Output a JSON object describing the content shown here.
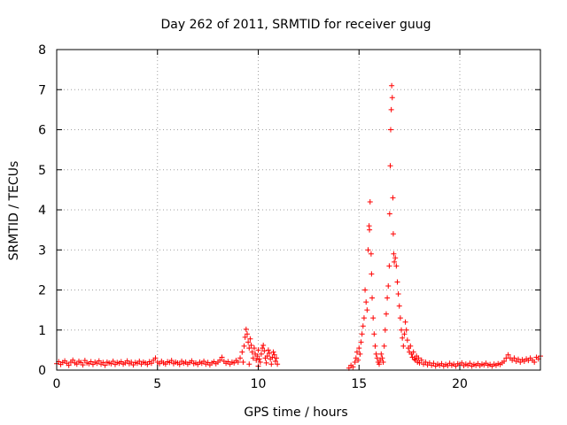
{
  "chart_data": {
    "type": "scatter",
    "title": "Day 262 of 2011, SRMTID for receiver guug",
    "xlabel": "GPS time / hours",
    "ylabel": "SRMTID / TECUs",
    "xlim": [
      0,
      24
    ],
    "ylim": [
      0,
      8
    ],
    "xticks": [
      0,
      5,
      10,
      15,
      20
    ],
    "yticks": [
      0,
      1,
      2,
      3,
      4,
      5,
      6,
      7,
      8
    ],
    "grid": true,
    "legend": "none",
    "marker": "+",
    "color": "#ff0000",
    "series": [
      {
        "points": [
          [
            0.0,
            0.16
          ],
          [
            0.1,
            0.21
          ],
          [
            0.2,
            0.14
          ],
          [
            0.3,
            0.19
          ],
          [
            0.4,
            0.23
          ],
          [
            0.5,
            0.17
          ],
          [
            0.6,
            0.12
          ],
          [
            0.7,
            0.2
          ],
          [
            0.8,
            0.25
          ],
          [
            0.9,
            0.18
          ],
          [
            1.0,
            0.15
          ],
          [
            1.1,
            0.22
          ],
          [
            1.2,
            0.19
          ],
          [
            1.3,
            0.13
          ],
          [
            1.4,
            0.24
          ],
          [
            1.5,
            0.18
          ],
          [
            1.6,
            0.16
          ],
          [
            1.7,
            0.21
          ],
          [
            1.8,
            0.14
          ],
          [
            1.9,
            0.2
          ],
          [
            2.0,
            0.17
          ],
          [
            2.1,
            0.23
          ],
          [
            2.2,
            0.15
          ],
          [
            2.3,
            0.19
          ],
          [
            2.4,
            0.12
          ],
          [
            2.5,
            0.2
          ],
          [
            2.6,
            0.18
          ],
          [
            2.7,
            0.16
          ],
          [
            2.8,
            0.22
          ],
          [
            2.9,
            0.14
          ],
          [
            3.0,
            0.19
          ],
          [
            3.1,
            0.17
          ],
          [
            3.2,
            0.21
          ],
          [
            3.3,
            0.15
          ],
          [
            3.4,
            0.18
          ],
          [
            3.5,
            0.23
          ],
          [
            3.6,
            0.16
          ],
          [
            3.7,
            0.2
          ],
          [
            3.8,
            0.13
          ],
          [
            3.9,
            0.19
          ],
          [
            4.0,
            0.17
          ],
          [
            4.1,
            0.22
          ],
          [
            4.2,
            0.15
          ],
          [
            4.3,
            0.2
          ],
          [
            4.4,
            0.18
          ],
          [
            4.5,
            0.14
          ],
          [
            4.6,
            0.21
          ],
          [
            4.7,
            0.17
          ],
          [
            4.8,
            0.25
          ],
          [
            4.9,
            0.3
          ],
          [
            5.0,
            0.2
          ],
          [
            5.1,
            0.16
          ],
          [
            5.2,
            0.22
          ],
          [
            5.3,
            0.18
          ],
          [
            5.4,
            0.15
          ],
          [
            5.5,
            0.21
          ],
          [
            5.6,
            0.19
          ],
          [
            5.7,
            0.24
          ],
          [
            5.8,
            0.16
          ],
          [
            5.9,
            0.2
          ],
          [
            6.0,
            0.18
          ],
          [
            6.1,
            0.14
          ],
          [
            6.2,
            0.22
          ],
          [
            6.3,
            0.17
          ],
          [
            6.4,
            0.2
          ],
          [
            6.5,
            0.15
          ],
          [
            6.6,
            0.19
          ],
          [
            6.7,
            0.23
          ],
          [
            6.8,
            0.16
          ],
          [
            6.9,
            0.18
          ],
          [
            7.0,
            0.14
          ],
          [
            7.1,
            0.2
          ],
          [
            7.2,
            0.17
          ],
          [
            7.3,
            0.22
          ],
          [
            7.4,
            0.15
          ],
          [
            7.5,
            0.19
          ],
          [
            7.6,
            0.13
          ],
          [
            7.7,
            0.18
          ],
          [
            7.8,
            0.21
          ],
          [
            7.9,
            0.16
          ],
          [
            8.0,
            0.2
          ],
          [
            8.1,
            0.25
          ],
          [
            8.2,
            0.32
          ],
          [
            8.3,
            0.22
          ],
          [
            8.4,
            0.17
          ],
          [
            8.5,
            0.21
          ],
          [
            8.6,
            0.15
          ],
          [
            8.7,
            0.2
          ],
          [
            8.8,
            0.18
          ],
          [
            8.9,
            0.24
          ],
          [
            9.0,
            0.2
          ],
          [
            9.1,
            0.3
          ],
          [
            9.2,
            0.45
          ],
          [
            9.3,
            0.6
          ],
          [
            9.35,
            0.82
          ],
          [
            9.4,
            1.02
          ],
          [
            9.45,
            0.9
          ],
          [
            9.5,
            0.7
          ],
          [
            9.55,
            0.55
          ],
          [
            9.6,
            0.78
          ],
          [
            9.65,
            0.62
          ],
          [
            9.7,
            0.45
          ],
          [
            9.75,
            0.3
          ],
          [
            9.8,
            0.55
          ],
          [
            9.85,
            0.4
          ],
          [
            9.9,
            0.25
          ],
          [
            9.95,
            0.35
          ],
          [
            10.0,
            0.5
          ],
          [
            10.05,
            0.28
          ],
          [
            10.1,
            0.2
          ],
          [
            10.15,
            0.4
          ],
          [
            10.2,
            0.55
          ],
          [
            10.25,
            0.62
          ],
          [
            10.3,
            0.48
          ],
          [
            10.35,
            0.3
          ],
          [
            10.4,
            0.18
          ],
          [
            10.45,
            0.35
          ],
          [
            10.5,
            0.5
          ],
          [
            10.55,
            0.42
          ],
          [
            10.6,
            0.28
          ],
          [
            10.65,
            0.15
          ],
          [
            10.7,
            0.32
          ],
          [
            10.75,
            0.45
          ],
          [
            10.8,
            0.38
          ],
          [
            10.85,
            0.22
          ],
          [
            10.9,
            0.3
          ],
          [
            10.95,
            0.15
          ],
          [
            9.25,
            0.2
          ],
          [
            9.55,
            0.15
          ],
          [
            10.0,
            0.1
          ],
          [
            14.5,
            0.05
          ],
          [
            14.6,
            0.12
          ],
          [
            14.7,
            0.08
          ],
          [
            14.8,
            0.2
          ],
          [
            14.85,
            0.3
          ],
          [
            14.9,
            0.45
          ],
          [
            14.95,
            0.25
          ],
          [
            15.0,
            0.55
          ],
          [
            15.05,
            0.4
          ],
          [
            15.1,
            0.7
          ],
          [
            15.15,
            0.9
          ],
          [
            15.2,
            1.1
          ],
          [
            15.25,
            1.3
          ],
          [
            15.3,
            2.0
          ],
          [
            15.35,
            1.7
          ],
          [
            15.4,
            1.5
          ],
          [
            15.45,
            3.0
          ],
          [
            15.5,
            3.6
          ],
          [
            15.52,
            3.5
          ],
          [
            15.55,
            4.2
          ],
          [
            15.6,
            2.9
          ],
          [
            15.62,
            2.4
          ],
          [
            15.65,
            1.8
          ],
          [
            15.7,
            1.3
          ],
          [
            15.75,
            0.9
          ],
          [
            15.8,
            0.6
          ],
          [
            15.85,
            0.4
          ],
          [
            15.9,
            0.3
          ],
          [
            15.95,
            0.2
          ],
          [
            16.0,
            0.15
          ],
          [
            16.05,
            0.25
          ],
          [
            16.1,
            0.4
          ],
          [
            16.15,
            0.3
          ],
          [
            16.2,
            0.2
          ],
          [
            16.25,
            0.6
          ],
          [
            16.3,
            1.0
          ],
          [
            16.35,
            1.4
          ],
          [
            16.4,
            1.8
          ],
          [
            16.45,
            2.1
          ],
          [
            16.5,
            2.6
          ],
          [
            16.52,
            3.9
          ],
          [
            16.55,
            5.1
          ],
          [
            16.57,
            6.0
          ],
          [
            16.6,
            6.5
          ],
          [
            16.62,
            7.1
          ],
          [
            16.65,
            6.8
          ],
          [
            16.68,
            4.3
          ],
          [
            16.7,
            3.4
          ],
          [
            16.72,
            2.9
          ],
          [
            16.75,
            2.7
          ],
          [
            16.8,
            2.8
          ],
          [
            16.85,
            2.6
          ],
          [
            16.9,
            2.2
          ],
          [
            16.95,
            1.9
          ],
          [
            17.0,
            1.6
          ],
          [
            17.05,
            1.3
          ],
          [
            17.1,
            1.0
          ],
          [
            17.15,
            0.8
          ],
          [
            17.2,
            0.6
          ],
          [
            17.25,
            0.9
          ],
          [
            17.3,
            1.2
          ],
          [
            17.35,
            1.0
          ],
          [
            17.4,
            0.75
          ],
          [
            17.45,
            0.55
          ],
          [
            17.5,
            0.45
          ],
          [
            17.55,
            0.6
          ],
          [
            17.6,
            0.4
          ],
          [
            17.65,
            0.32
          ],
          [
            17.7,
            0.45
          ],
          [
            17.75,
            0.28
          ],
          [
            17.8,
            0.25
          ],
          [
            17.85,
            0.35
          ],
          [
            17.9,
            0.2
          ],
          [
            17.95,
            0.3
          ],
          [
            18.0,
            0.18
          ],
          [
            18.1,
            0.25
          ],
          [
            18.2,
            0.15
          ],
          [
            18.3,
            0.2
          ],
          [
            18.4,
            0.13
          ],
          [
            18.5,
            0.18
          ],
          [
            18.6,
            0.12
          ],
          [
            18.7,
            0.17
          ],
          [
            18.8,
            0.1
          ],
          [
            18.9,
            0.15
          ],
          [
            19.0,
            0.12
          ],
          [
            19.1,
            0.16
          ],
          [
            19.2,
            0.1
          ],
          [
            19.3,
            0.14
          ],
          [
            19.4,
            0.11
          ],
          [
            19.5,
            0.17
          ],
          [
            19.6,
            0.12
          ],
          [
            19.7,
            0.15
          ],
          [
            19.8,
            0.1
          ],
          [
            19.9,
            0.16
          ],
          [
            20.0,
            0.13
          ],
          [
            20.1,
            0.18
          ],
          [
            20.2,
            0.11
          ],
          [
            20.3,
            0.15
          ],
          [
            20.4,
            0.12
          ],
          [
            20.5,
            0.17
          ],
          [
            20.6,
            0.1
          ],
          [
            20.7,
            0.14
          ],
          [
            20.8,
            0.12
          ],
          [
            20.9,
            0.16
          ],
          [
            21.0,
            0.11
          ],
          [
            21.1,
            0.15
          ],
          [
            21.2,
            0.13
          ],
          [
            21.3,
            0.17
          ],
          [
            21.4,
            0.12
          ],
          [
            21.5,
            0.14
          ],
          [
            21.6,
            0.1
          ],
          [
            21.7,
            0.15
          ],
          [
            21.8,
            0.12
          ],
          [
            21.9,
            0.16
          ],
          [
            22.0,
            0.14
          ],
          [
            22.1,
            0.18
          ],
          [
            22.2,
            0.22
          ],
          [
            22.3,
            0.3
          ],
          [
            22.4,
            0.38
          ],
          [
            22.5,
            0.3
          ],
          [
            22.6,
            0.25
          ],
          [
            22.7,
            0.3
          ],
          [
            22.8,
            0.22
          ],
          [
            22.9,
            0.27
          ],
          [
            23.0,
            0.2
          ],
          [
            23.1,
            0.26
          ],
          [
            23.2,
            0.22
          ],
          [
            23.3,
            0.28
          ],
          [
            23.4,
            0.24
          ],
          [
            23.5,
            0.3
          ],
          [
            23.6,
            0.25
          ],
          [
            23.7,
            0.2
          ],
          [
            23.8,
            0.32
          ],
          [
            23.9,
            0.28
          ],
          [
            24.0,
            0.35
          ]
        ]
      }
    ]
  }
}
